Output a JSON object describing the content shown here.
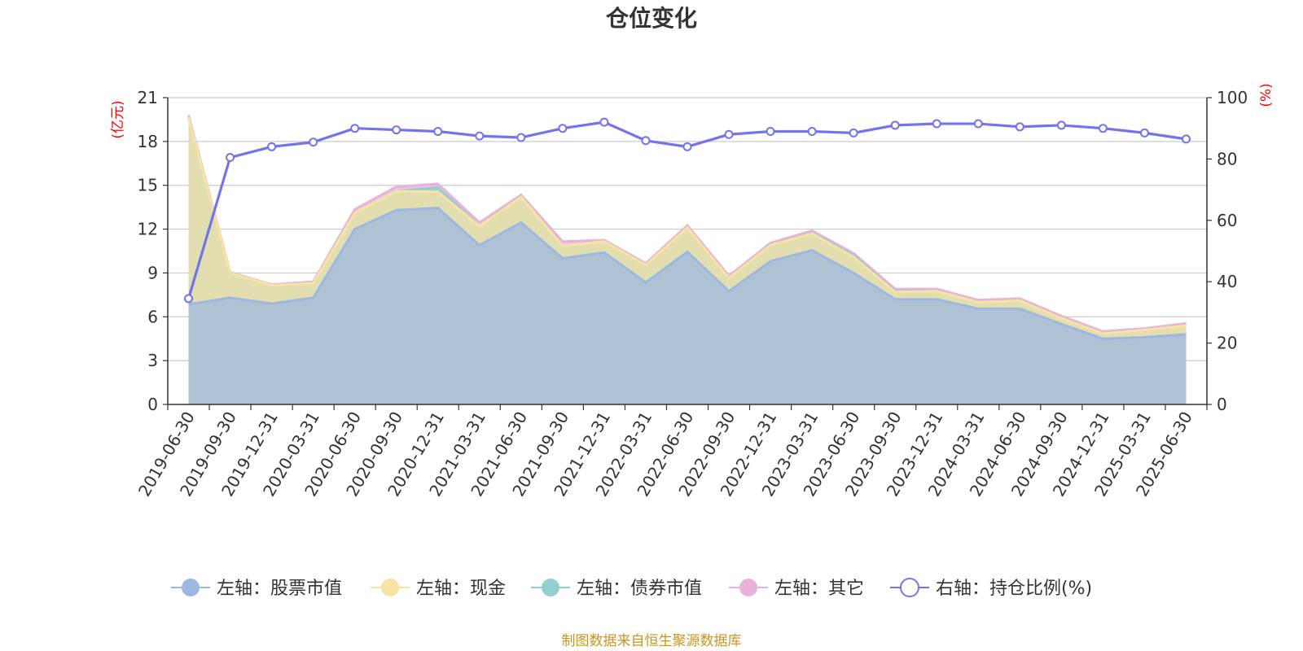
{
  "chart_data": {
    "type": "area",
    "title": "仓位变化",
    "source_note": "制图数据来自恒生聚源数据库",
    "left_axis": {
      "unit": "(亿元)",
      "ylim": [
        0,
        21
      ],
      "ticks": [
        "0",
        "3",
        "6",
        "9",
        "12",
        "15",
        "18",
        "21"
      ]
    },
    "right_axis": {
      "unit": "(%)",
      "ylim": [
        0,
        100
      ],
      "ticks": [
        "0",
        "20",
        "40",
        "60",
        "80",
        "100"
      ]
    },
    "categories": [
      "2019-06-30",
      "2019-09-30",
      "2019-12-31",
      "2020-03-31",
      "2020-06-30",
      "2020-09-30",
      "2020-12-31",
      "2021-03-31",
      "2021-06-30",
      "2021-09-30",
      "2021-12-31",
      "2022-03-31",
      "2022-06-30",
      "2022-09-30",
      "2022-12-31",
      "2023-03-31",
      "2023-06-30",
      "2023-09-30",
      "2023-12-31",
      "2024-03-31",
      "2024-06-30",
      "2024-09-30",
      "2024-12-31",
      "2025-03-31",
      "2025-06-30"
    ],
    "series": [
      {
        "name": "左轴：股票市值",
        "axis": "left",
        "stack": true,
        "color": "#9db8e0",
        "values": [
          6.85,
          7.3,
          6.9,
          7.3,
          12.0,
          13.3,
          13.45,
          10.9,
          12.45,
          10.0,
          10.4,
          8.35,
          10.45,
          7.75,
          9.8,
          10.55,
          9.0,
          7.2,
          7.2,
          6.55,
          6.55,
          5.5,
          4.5,
          4.6,
          4.8
        ]
      },
      {
        "name": "左轴：现金",
        "axis": "left",
        "stack": true,
        "color": "#f7e3a3",
        "values": [
          12.8,
          1.7,
          1.25,
          1.0,
          1.1,
          1.3,
          1.1,
          1.3,
          1.75,
          0.85,
          0.75,
          1.2,
          1.65,
          0.9,
          1.1,
          1.15,
          1.1,
          0.5,
          0.55,
          0.45,
          0.55,
          0.4,
          0.35,
          0.5,
          0.6
        ]
      },
      {
        "name": "左轴：债券市值",
        "axis": "left",
        "stack": true,
        "color": "#92d0d0",
        "values": [
          0,
          0,
          0,
          0,
          0,
          0,
          0.3,
          0,
          0,
          0,
          0,
          0,
          0,
          0,
          0,
          0.05,
          0.1,
          0.05,
          0,
          0,
          0,
          0,
          0,
          0,
          0
        ]
      },
      {
        "name": "左轴：其它",
        "axis": "left",
        "stack": true,
        "color": "#e8b2da",
        "values": [
          0.15,
          0.05,
          0.05,
          0.1,
          0.25,
          0.3,
          0.25,
          0.25,
          0.15,
          0.3,
          0.1,
          0.1,
          0.15,
          0.15,
          0.15,
          0.15,
          0.15,
          0.15,
          0.15,
          0.15,
          0.15,
          0.15,
          0.15,
          0.1,
          0.15
        ]
      },
      {
        "name": "右轴：持仓比例(%)",
        "axis": "right",
        "stack": false,
        "color": "#7373ee",
        "values": [
          34.5,
          80.5,
          84.0,
          85.5,
          90.0,
          89.5,
          89.0,
          87.5,
          87.0,
          90.0,
          92.0,
          86.0,
          84.0,
          88.0,
          89.0,
          89.0,
          88.5,
          91.0,
          91.5,
          91.5,
          90.5,
          91.0,
          90.0,
          88.5,
          86.5
        ]
      }
    ],
    "legend_position": "bottom",
    "grid": true
  }
}
